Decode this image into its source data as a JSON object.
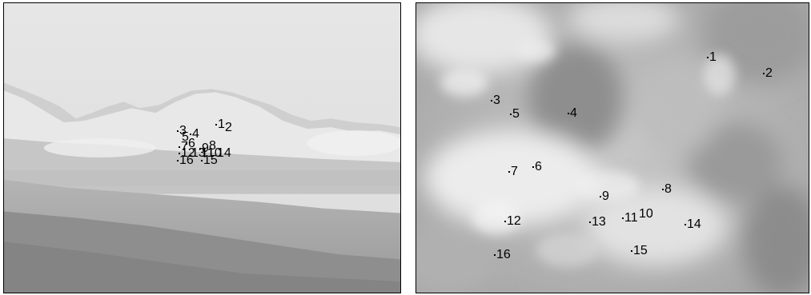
{
  "left_image": {
    "description_icon": "mountain-landscape-photo",
    "points": [
      {
        "label": "1"
      },
      {
        "label": "2"
      },
      {
        "label": "3"
      },
      {
        "label": "4"
      },
      {
        "label": "5"
      },
      {
        "label": "6"
      },
      {
        "label": "7"
      },
      {
        "label": "8"
      },
      {
        "label": "9"
      },
      {
        "label": "10"
      },
      {
        "label": "11"
      },
      {
        "label": "12"
      },
      {
        "label": "13"
      },
      {
        "label": "14"
      },
      {
        "label": "15"
      },
      {
        "label": "16"
      }
    ]
  },
  "right_image": {
    "description_icon": "zoomed-snow-texture-photo",
    "points": [
      {
        "label": "1"
      },
      {
        "label": "2"
      },
      {
        "label": "3"
      },
      {
        "label": "4"
      },
      {
        "label": "5"
      },
      {
        "label": "6"
      },
      {
        "label": "7"
      },
      {
        "label": "8"
      },
      {
        "label": "9"
      },
      {
        "label": "10"
      },
      {
        "label": "11"
      },
      {
        "label": "12"
      },
      {
        "label": "13"
      },
      {
        "label": "14"
      },
      {
        "label": "15"
      },
      {
        "label": "16"
      }
    ]
  }
}
